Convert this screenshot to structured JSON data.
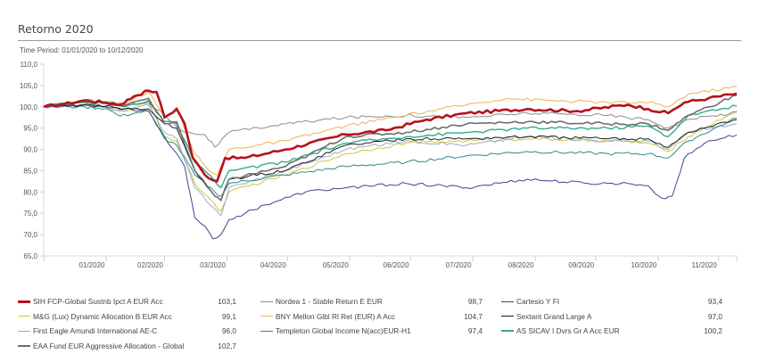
{
  "header": {
    "title": "Retorno 2020",
    "time_period": "Time Period: 01/01/2020 to 10/12/2020"
  },
  "chart_data": {
    "type": "line",
    "title": "Retorno 2020",
    "subtitle": "Time Period: 01/01/2020 to 10/12/2020",
    "xlabel": "",
    "ylabel": "",
    "x_unit": "days since 01/01/2020",
    "xlim": [
      0,
      344
    ],
    "ylim": [
      65,
      110
    ],
    "yticks": [
      65,
      70,
      75,
      80,
      85,
      90,
      95,
      100,
      105,
      110
    ],
    "ytick_labels": [
      "65,0",
      "70,0",
      "75,0",
      "80,0",
      "85,0",
      "90,0",
      "95,0",
      "100,0",
      "105,0",
      "110,0"
    ],
    "xticks": [
      31,
      60,
      91,
      121,
      152,
      182,
      213,
      244,
      274,
      305,
      335
    ],
    "xtick_labels": [
      "01/2020",
      "02/2020",
      "03/2020",
      "04/2020",
      "05/2020",
      "06/2020",
      "07/2020",
      "08/2020",
      "09/2020",
      "10/2020",
      "11/2020"
    ],
    "grid": false,
    "legend_position": "bottom",
    "series": [
      {
        "name": "SIH FCP-Global Sustnb Ipct A EUR Acc",
        "final": "103,1",
        "color": "#b5121b",
        "width": 2.6,
        "points": [
          [
            0,
            100
          ],
          [
            10,
            100.6
          ],
          [
            20,
            101.5
          ],
          [
            31,
            101
          ],
          [
            38,
            100.5
          ],
          [
            45,
            102.5
          ],
          [
            52,
            103.8
          ],
          [
            56,
            103.5
          ],
          [
            60,
            97.5
          ],
          [
            66,
            99.5
          ],
          [
            70,
            96
          ],
          [
            74,
            88
          ],
          [
            80,
            84
          ],
          [
            86,
            82.5
          ],
          [
            90,
            88
          ],
          [
            100,
            88
          ],
          [
            120,
            90
          ],
          [
            150,
            93.5
          ],
          [
            170,
            94.5
          ],
          [
            190,
            97
          ],
          [
            210,
            98.5
          ],
          [
            240,
            99.5
          ],
          [
            265,
            99
          ],
          [
            290,
            100.5
          ],
          [
            300,
            99.5
          ],
          [
            310,
            98.5
          ],
          [
            318,
            101
          ],
          [
            330,
            102
          ],
          [
            344,
            103.1
          ]
        ]
      },
      {
        "name": "M&G (Lux) Dynamic Allocation B EUR Acc",
        "final": "99,1",
        "color": "#c8c83c",
        "width": 1,
        "points": [
          [
            0,
            100
          ],
          [
            20,
            100.3
          ],
          [
            31,
            99.8
          ],
          [
            40,
            99
          ],
          [
            52,
            101
          ],
          [
            60,
            93
          ],
          [
            66,
            92
          ],
          [
            75,
            82
          ],
          [
            85,
            77
          ],
          [
            88,
            75.5
          ],
          [
            92,
            80
          ],
          [
            120,
            84
          ],
          [
            150,
            89
          ],
          [
            180,
            91.5
          ],
          [
            210,
            92
          ],
          [
            240,
            92.5
          ],
          [
            280,
            92
          ],
          [
            300,
            91.5
          ],
          [
            310,
            89.5
          ],
          [
            320,
            93
          ],
          [
            344,
            99.1
          ]
        ]
      },
      {
        "name": "First Eagle Amundi International AE-C",
        "final": "96,0",
        "color": "#9aaccc",
        "width": 1,
        "points": [
          [
            0,
            100
          ],
          [
            20,
            100.5
          ],
          [
            31,
            100
          ],
          [
            40,
            99
          ],
          [
            52,
            100.5
          ],
          [
            60,
            94
          ],
          [
            66,
            92.5
          ],
          [
            75,
            81
          ],
          [
            85,
            76
          ],
          [
            88,
            74.5
          ],
          [
            92,
            81
          ],
          [
            120,
            85
          ],
          [
            150,
            90
          ],
          [
            180,
            92
          ],
          [
            210,
            91
          ],
          [
            240,
            93
          ],
          [
            280,
            92
          ],
          [
            300,
            92
          ],
          [
            310,
            90
          ],
          [
            320,
            94
          ],
          [
            344,
            96.0
          ]
        ]
      },
      {
        "name": "EAA Fund EUR Aggressive Allocation - Global",
        "final": "102,7",
        "color": "#6e6e6e",
        "width": 1.6,
        "points": [
          [
            0,
            100
          ],
          [
            20,
            101.3
          ],
          [
            31,
            101
          ],
          [
            40,
            100.2
          ],
          [
            52,
            102
          ],
          [
            60,
            96
          ],
          [
            66,
            96.5
          ],
          [
            75,
            85
          ],
          [
            85,
            79
          ],
          [
            88,
            78
          ],
          [
            92,
            83
          ],
          [
            120,
            86
          ],
          [
            150,
            93
          ],
          [
            180,
            94
          ],
          [
            210,
            96
          ],
          [
            240,
            96.5
          ],
          [
            280,
            96
          ],
          [
            300,
            96
          ],
          [
            310,
            94.5
          ],
          [
            320,
            98
          ],
          [
            344,
            102.7
          ]
        ]
      },
      {
        "name": "Nordea 1 - Stable Return E EUR",
        "final": "98,7",
        "color": "#8c8c8c",
        "width": 1,
        "points": [
          [
            0,
            100
          ],
          [
            20,
            101.5
          ],
          [
            31,
            101.2
          ],
          [
            40,
            100.5
          ],
          [
            52,
            101
          ],
          [
            60,
            98
          ],
          [
            70,
            94
          ],
          [
            80,
            93.5
          ],
          [
            85,
            90.5
          ],
          [
            92,
            94
          ],
          [
            120,
            96
          ],
          [
            150,
            97.5
          ],
          [
            180,
            98
          ],
          [
            210,
            97.5
          ],
          [
            240,
            98.5
          ],
          [
            280,
            98
          ],
          [
            300,
            97
          ],
          [
            310,
            95
          ],
          [
            320,
            97
          ],
          [
            344,
            98.7
          ]
        ]
      },
      {
        "name": "BNY Mellon Glbl Rl Ret (EUR) A Acc",
        "final": "104,7",
        "color": "#f0b050",
        "width": 1,
        "points": [
          [
            0,
            100
          ],
          [
            20,
            101.2
          ],
          [
            31,
            101
          ],
          [
            40,
            100.8
          ],
          [
            52,
            103.5
          ],
          [
            60,
            97.5
          ],
          [
            66,
            100
          ],
          [
            75,
            89
          ],
          [
            82,
            85
          ],
          [
            86,
            84
          ],
          [
            92,
            90
          ],
          [
            120,
            92
          ],
          [
            150,
            95.5
          ],
          [
            180,
            98
          ],
          [
            210,
            100.5
          ],
          [
            230,
            102
          ],
          [
            250,
            101.5
          ],
          [
            280,
            101
          ],
          [
            300,
            101
          ],
          [
            310,
            100
          ],
          [
            320,
            103
          ],
          [
            344,
            104.7
          ]
        ]
      },
      {
        "name": "Templeton Global Income N(acc)EUR-H1",
        "final": "97,4",
        "color": "#2e8a8a",
        "width": 1,
        "points": [
          [
            0,
            100
          ],
          [
            20,
            100
          ],
          [
            31,
            99.6
          ],
          [
            38,
            97.8
          ],
          [
            45,
            98.5
          ],
          [
            52,
            99
          ],
          [
            60,
            92.5
          ],
          [
            66,
            91
          ],
          [
            75,
            84
          ],
          [
            85,
            80
          ],
          [
            88,
            79
          ],
          [
            92,
            82
          ],
          [
            120,
            84
          ],
          [
            150,
            86
          ],
          [
            180,
            87
          ],
          [
            210,
            88.5
          ],
          [
            240,
            89.5
          ],
          [
            280,
            89
          ],
          [
            300,
            89
          ],
          [
            310,
            88
          ],
          [
            320,
            92
          ],
          [
            344,
            97.4
          ]
        ]
      },
      {
        "name": "Cartesio Y FI",
        "final": "93,4",
        "color": "#3c468c",
        "width": 1,
        "points": [
          [
            0,
            100
          ],
          [
            20,
            100.4
          ],
          [
            31,
            100
          ],
          [
            40,
            99.5
          ],
          [
            52,
            99
          ],
          [
            60,
            93
          ],
          [
            70,
            86
          ],
          [
            75,
            74
          ],
          [
            80,
            72
          ],
          [
            84,
            69
          ],
          [
            88,
            70
          ],
          [
            92,
            73.5
          ],
          [
            110,
            77
          ],
          [
            130,
            80
          ],
          [
            150,
            81
          ],
          [
            180,
            82
          ],
          [
            210,
            81
          ],
          [
            240,
            83
          ],
          [
            270,
            82
          ],
          [
            290,
            82
          ],
          [
            300,
            81.5
          ],
          [
            307,
            78.5
          ],
          [
            312,
            79
          ],
          [
            318,
            88
          ],
          [
            330,
            92
          ],
          [
            344,
            93.4
          ]
        ]
      },
      {
        "name": "Sextant Grand Large A",
        "final": "97,0",
        "color": "#1a1a1a",
        "width": 1,
        "points": [
          [
            0,
            100
          ],
          [
            20,
            100.5
          ],
          [
            31,
            100.2
          ],
          [
            40,
            99.5
          ],
          [
            52,
            99.5
          ],
          [
            60,
            96
          ],
          [
            66,
            95
          ],
          [
            75,
            85
          ],
          [
            85,
            79
          ],
          [
            88,
            78
          ],
          [
            92,
            83
          ],
          [
            120,
            85
          ],
          [
            150,
            91
          ],
          [
            180,
            92.5
          ],
          [
            210,
            92.5
          ],
          [
            240,
            93
          ],
          [
            280,
            92.5
          ],
          [
            300,
            92.5
          ],
          [
            310,
            90.5
          ],
          [
            320,
            94
          ],
          [
            344,
            97.0
          ]
        ]
      },
      {
        "name": "AS SICAV I Dvrs Gr A Acc EUR",
        "final": "100,2",
        "color": "#3aa88a",
        "width": 1.4,
        "points": [
          [
            0,
            100
          ],
          [
            20,
            101
          ],
          [
            31,
            100.7
          ],
          [
            40,
            100
          ],
          [
            52,
            101.5
          ],
          [
            60,
            96.5
          ],
          [
            66,
            96
          ],
          [
            75,
            87
          ],
          [
            85,
            82.5
          ],
          [
            88,
            81
          ],
          [
            92,
            85
          ],
          [
            120,
            87
          ],
          [
            150,
            91.5
          ],
          [
            180,
            93
          ],
          [
            210,
            94
          ],
          [
            240,
            95
          ],
          [
            280,
            95
          ],
          [
            300,
            95.5
          ],
          [
            310,
            93
          ],
          [
            320,
            98
          ],
          [
            344,
            100.2
          ]
        ]
      }
    ]
  }
}
